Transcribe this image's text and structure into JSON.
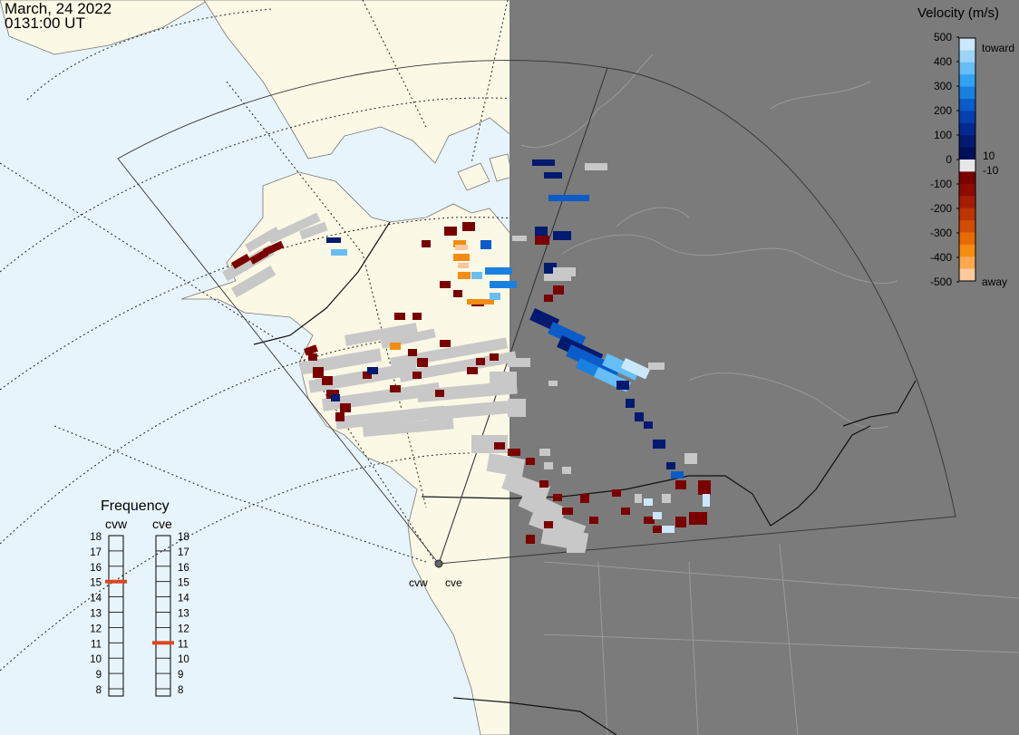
{
  "header": {
    "date": "March, 24 2022",
    "time": "0131:00 UT"
  },
  "radars": {
    "west": "cvw",
    "east": "cve"
  },
  "colorbar": {
    "title": "Velocity (m/s)",
    "ticks": [
      "500",
      "400",
      "300",
      "200",
      "100",
      "10",
      "0",
      "-10",
      "-100",
      "-200",
      "-300",
      "-400",
      "-500"
    ],
    "toward_label": "toward",
    "away_label": "away",
    "colors": [
      "#cbe7fb",
      "#9ed3f8",
      "#67bdf5",
      "#33a2f0",
      "#1a80e0",
      "#0a5cc8",
      "#063fae",
      "#032a8f",
      "#021a70",
      "#000f5a",
      "#e6e6e6",
      "#7a0000",
      "#8f0a00",
      "#a61c00",
      "#bd3400",
      "#d24c00",
      "#e86a00",
      "#f58c10",
      "#fba850",
      "#fdc89a"
    ]
  },
  "frequency": {
    "title": "Frequency",
    "scale": [
      "18",
      "17",
      "16",
      "15",
      "14",
      "13",
      "12",
      "11",
      "10",
      "9",
      "8"
    ],
    "cvw_mhz": 15,
    "cve_mhz": 11,
    "marker_color": "#e0441e"
  },
  "map": {
    "night_shade_color": "#7b7b7b",
    "ocean_color": "#e8f4fb",
    "land_color": "#fbf8e6",
    "ground_scatter_color": "#c8c8c8"
  }
}
